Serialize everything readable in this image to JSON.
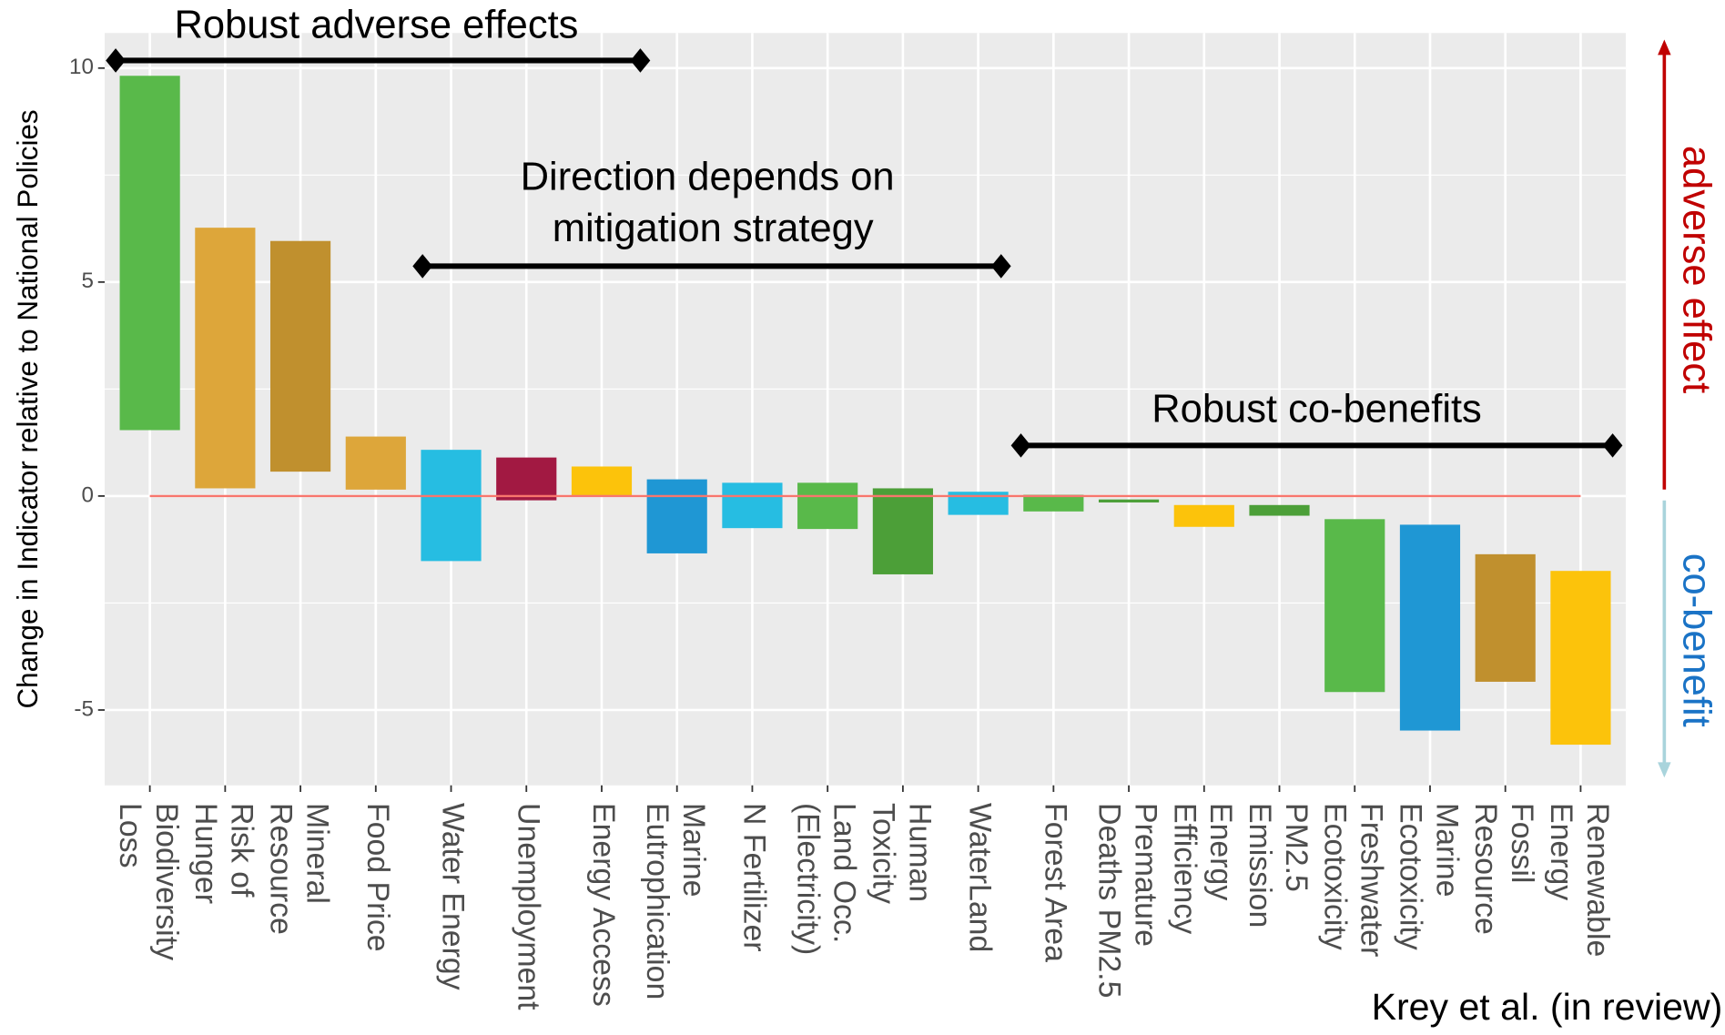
{
  "chart_data": {
    "type": "floating_bar",
    "y_label": "Change in Indicator relative to National Policies",
    "categories": [
      [
        "Biodiversity",
        "Loss"
      ],
      [
        "Risk of",
        "Hunger"
      ],
      [
        "Mineral",
        "Resource"
      ],
      [
        "Food Price"
      ],
      [
        "Water Energy"
      ],
      [
        "Unemployment"
      ],
      [
        "Energy Access"
      ],
      [
        "Marine",
        "Eutrophication"
      ],
      [
        "N Fertilizer"
      ],
      [
        "Land Occ.",
        "(Electricity)"
      ],
      [
        "Human",
        "Toxicity"
      ],
      [
        "WaterLand"
      ],
      [
        "Forest Area"
      ],
      [
        "Premature",
        "Deaths PM2.5"
      ],
      [
        "Energy",
        "Efficiency"
      ],
      [
        "PM2.5",
        "Emission"
      ],
      [
        "Freshwater",
        "Ecotoxicity"
      ],
      [
        "Marine",
        "Ecotoxicity"
      ],
      [
        "Fossil",
        "Resource"
      ],
      [
        "Renewable",
        "Energy"
      ]
    ],
    "values": [
      [
        1.54,
        9.82
      ],
      [
        0.18,
        6.27
      ],
      [
        0.57,
        5.96
      ],
      [
        0.15,
        1.39
      ],
      [
        -1.52,
        1.08
      ],
      [
        -0.1,
        0.9
      ],
      [
        0,
        0.69
      ],
      [
        -1.34,
        0.39
      ],
      [
        -0.75,
        0.31
      ],
      [
        -0.77,
        0.31
      ],
      [
        -1.83,
        0.18
      ],
      [
        -0.44,
        0.1
      ],
      [
        -0.36,
        0.03
      ],
      [
        -0.15,
        -0.08
      ],
      [
        -0.72,
        -0.21
      ],
      [
        -0.46,
        -0.21
      ],
      [
        -4.58,
        -0.54
      ],
      [
        -5.48,
        -0.67
      ],
      [
        -4.34,
        -1.36
      ],
      [
        -5.81,
        -1.75
      ]
    ],
    "colors": [
      "#59b94a",
      "#dda63a",
      "#c0902e",
      "#dda63a",
      "#26bde2",
      "#a21942",
      "#fcc30b",
      "#1f97d4",
      "#26bde2",
      "#59b94a",
      "#4c9f38",
      "#26bde2",
      "#59b94a",
      "#4c9f38",
      "#fcc30b",
      "#4c9f38",
      "#59b94a",
      "#1f97d4",
      "#c0902e",
      "#fcc30b"
    ],
    "reference_line": 0,
    "reference_color": "#f8766d",
    "ylim": [
      -6.76,
      10.82
    ],
    "yticks": [
      -5,
      0,
      5,
      10
    ],
    "grid": true,
    "annotations": {
      "adverse": "Robust adverse effects",
      "direction": [
        "Direction depends on",
        "mitigation strategy"
      ],
      "cobenefits": "Robust co-benefits"
    },
    "side_labels": {
      "adverse": "adverse effect",
      "cobenefit": "co-benefit"
    },
    "source": "Krey et al. (in review)"
  }
}
